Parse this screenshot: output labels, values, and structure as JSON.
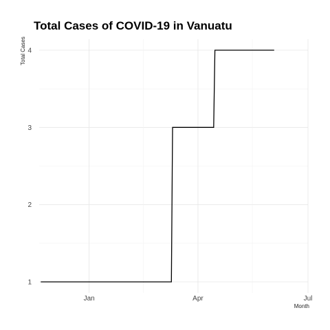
{
  "chart_data": {
    "type": "line",
    "step": true,
    "title": "Total Cases of COVID-19 in Vanuatu",
    "xlabel": "Month",
    "ylabel": "Total Cases",
    "x_ticks": [
      {
        "label": "Jan",
        "date": "2021-01-01"
      },
      {
        "label": "Apr",
        "date": "2021-04-01"
      },
      {
        "label": "Jul",
        "date": "2021-07-01"
      }
    ],
    "y_ticks": [
      1,
      2,
      3,
      4
    ],
    "xlim": [
      "2020-11-15",
      "2021-07-01"
    ],
    "ylim": [
      1,
      4
    ],
    "grid": true,
    "series": [
      {
        "color": "#000000",
        "points": [
          {
            "x": "2020-11-22",
            "y": 1
          },
          {
            "x": "2021-03-10",
            "y": 1
          },
          {
            "x": "2021-03-11",
            "y": 3
          },
          {
            "x": "2021-04-14",
            "y": 3
          },
          {
            "x": "2021-04-15",
            "y": 4
          },
          {
            "x": "2021-06-03",
            "y": 4
          }
        ]
      }
    ]
  }
}
